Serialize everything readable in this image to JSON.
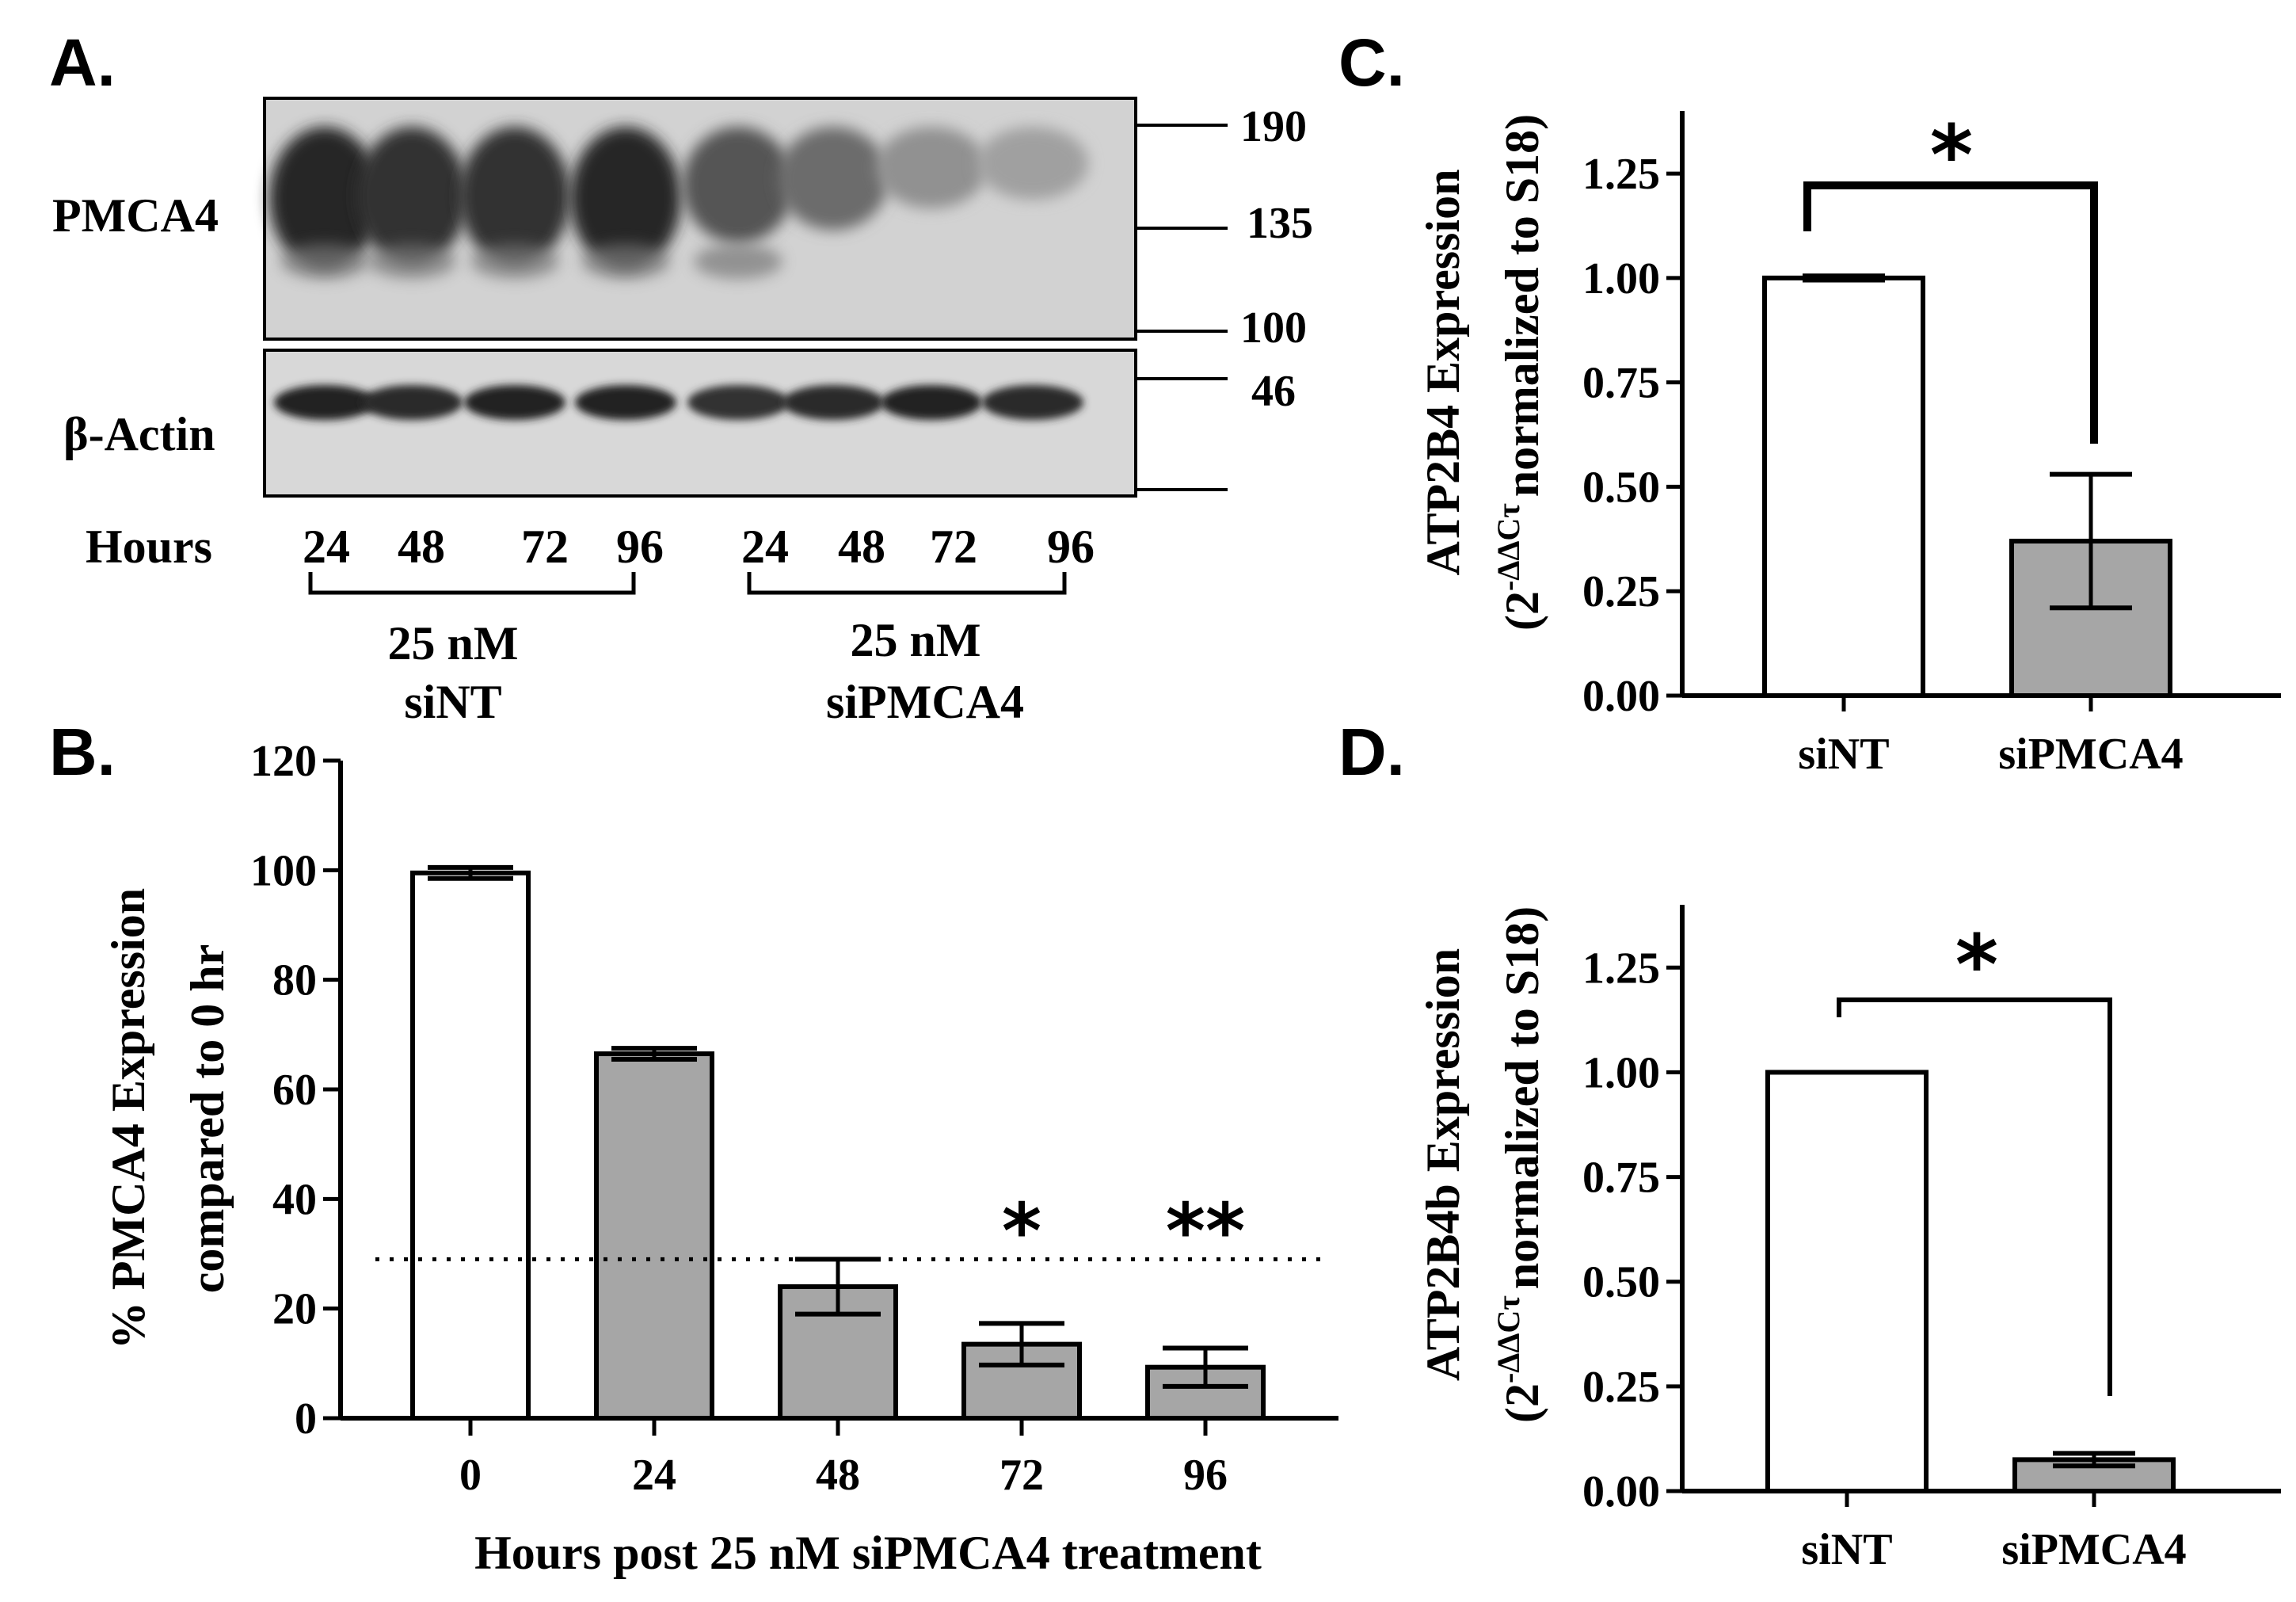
{
  "panels": {
    "A": {
      "letter": "A.",
      "blot_label_top": "PMCA4",
      "blot_label_bottom": "β-Actin",
      "hours_label": "Hours",
      "markers": [
        "190",
        "135",
        "100",
        "46"
      ],
      "lanes": [
        "24",
        "48",
        "72",
        "96",
        "24",
        "48",
        "72",
        "96"
      ],
      "group1_line1": "25 nM",
      "group1_line2": "siNT",
      "group2_line1": "25 nM",
      "group2_line2": "siPMCA4",
      "pmca4_band_intensity": [
        1.0,
        0.95,
        0.95,
        1.0,
        0.7,
        0.55,
        0.3,
        0.2
      ],
      "actin_band_intensity": [
        0.95,
        0.9,
        0.95,
        0.95,
        0.85,
        0.9,
        0.95,
        0.9
      ]
    },
    "B": {
      "letter": "B."
    },
    "C": {
      "letter": "C."
    },
    "D": {
      "letter": "D."
    }
  },
  "chart_data": [
    {
      "panel": "B",
      "type": "bar",
      "categories": [
        "0",
        "24",
        "48",
        "72",
        "96"
      ],
      "values": [
        99.5,
        66.5,
        24,
        13.5,
        9.3
      ],
      "errors": [
        1,
        1,
        5,
        3.8,
        3.5
      ],
      "bar_colors": [
        "#ffffff",
        "#a6a6a6",
        "#a6a6a6",
        "#a6a6a6",
        "#a6a6a6"
      ],
      "xlabel": "Hours post 25 nM siPMCA4 treatment",
      "ylabel_line1": "% PMCA4 Expression",
      "ylabel_line2": "compared to 0 hr",
      "ylim": [
        0,
        120
      ],
      "yticks": [
        "0",
        "20",
        "40",
        "60",
        "80",
        "100",
        "120"
      ],
      "reference_line": 29,
      "significance": [
        {
          "category": "72",
          "text": "*"
        },
        {
          "category": "96",
          "text": "**"
        }
      ]
    },
    {
      "panel": "C",
      "type": "bar",
      "categories": [
        "siNT",
        "siPMCA4"
      ],
      "values": [
        1.0,
        0.37
      ],
      "errors": [
        0.005,
        0.16
      ],
      "bar_colors": [
        "#ffffff",
        "#a6a6a6"
      ],
      "ylabel_line1": "ATP2B4 Expression",
      "ylabel_line2_prefix": "(2",
      "ylabel_line2_sup": "-ΔΔCτ",
      "ylabel_line2_suffix": "normalized to S18)",
      "ylim": [
        0,
        1.4
      ],
      "yticks": [
        "0.00",
        "0.25",
        "0.50",
        "0.75",
        "1.00",
        "1.25"
      ],
      "significance": [
        {
          "text": "*"
        }
      ]
    },
    {
      "panel": "D",
      "type": "bar",
      "categories": [
        "siNT",
        "siPMCA4"
      ],
      "values": [
        1.0,
        0.075
      ],
      "errors": [
        0.0,
        0.015
      ],
      "bar_colors": [
        "#ffffff",
        "#a6a6a6"
      ],
      "ylabel_line1": "ATP2B4b Expression",
      "ylabel_line2_prefix": "(2",
      "ylabel_line2_sup": "-ΔΔCτ",
      "ylabel_line2_suffix": "normalized to S18)",
      "ylim": [
        0,
        1.4
      ],
      "yticks": [
        "0.00",
        "0.25",
        "0.50",
        "0.75",
        "1.00",
        "1.25"
      ],
      "significance": [
        {
          "text": "*"
        }
      ]
    }
  ]
}
